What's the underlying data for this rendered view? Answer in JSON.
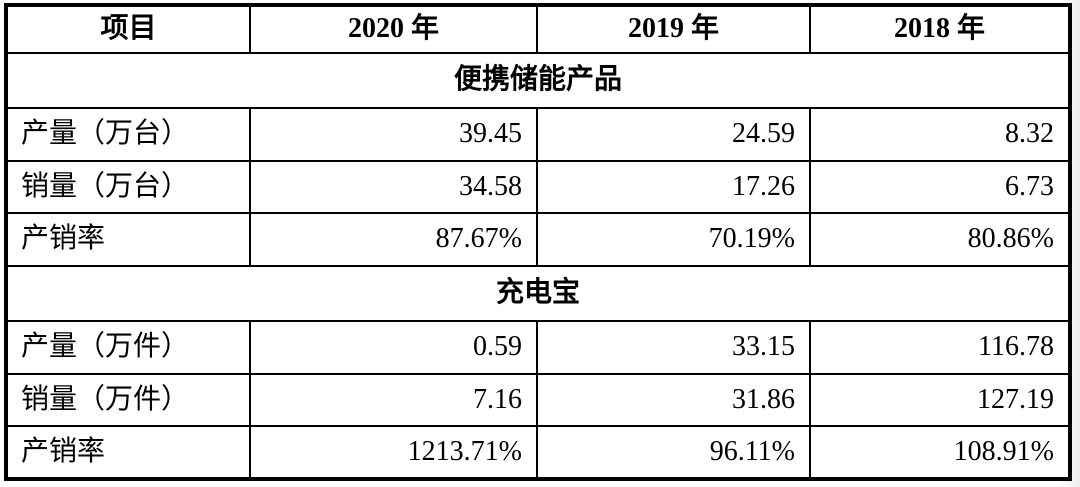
{
  "table": {
    "header": [
      "项目",
      "2020 年",
      "2019 年",
      "2018 年"
    ],
    "sections": [
      {
        "title": "便携储能产品",
        "rows": [
          {
            "label": "产量（万台）",
            "values": [
              "39.45",
              "24.59",
              "8.32"
            ]
          },
          {
            "label": "销量（万台）",
            "values": [
              "34.58",
              "17.26",
              "6.73"
            ]
          },
          {
            "label": "产销率",
            "values": [
              "87.67%",
              "70.19%",
              "80.86%"
            ]
          }
        ]
      },
      {
        "title": "充电宝",
        "rows": [
          {
            "label": "产量（万件）",
            "values": [
              "0.59",
              "33.15",
              "116.78"
            ]
          },
          {
            "label": "销量（万件）",
            "values": [
              "7.16",
              "31.86",
              "127.19"
            ]
          },
          {
            "label": "产销率",
            "values": [
              "1213.71%",
              "96.11%",
              "108.91%"
            ]
          }
        ]
      }
    ],
    "colors": {
      "border": "#000000",
      "background": "#ffffff",
      "text": "#000000"
    }
  }
}
